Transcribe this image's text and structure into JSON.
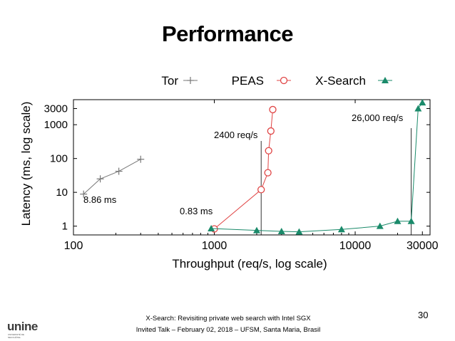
{
  "slide": {
    "title": "Performance",
    "page_number": "30",
    "footer_line1": "X-Search: Revisiting private web search with Intel SGX",
    "footer_line2": "Invited Talk – February 02, 2018 – UFSM, Santa Maria, Brasil",
    "logo_text": "unine",
    "logo_subtext": "UNIVERSITÉ DE NEUCHÂTEL"
  },
  "chart_data": {
    "type": "line",
    "title": "",
    "xlabel": "Throughput (req/s, log scale)",
    "ylabel": "Latency (ms, log scale)",
    "xscale": "log",
    "yscale": "log",
    "xlim": [
      100,
      34000
    ],
    "ylim": [
      0.55,
      5500
    ],
    "grid": false,
    "legend_position": "top",
    "x_ticks": [
      {
        "value": 100,
        "label": "100"
      },
      {
        "value": 1000,
        "label": "1000"
      },
      {
        "value": 10000,
        "label": "10000"
      },
      {
        "value": 30000,
        "label": "30000"
      }
    ],
    "y_ticks": [
      {
        "value": 1,
        "label": "1"
      },
      {
        "value": 10,
        "label": "10"
      },
      {
        "value": 100,
        "label": "100"
      },
      {
        "value": 1000,
        "label": "1000"
      },
      {
        "value": 3000,
        "label": "3000"
      }
    ],
    "series": [
      {
        "name": "Tor",
        "marker": "plus",
        "color": "#777777",
        "x": [
          118,
          155,
          210,
          300
        ],
        "y": [
          8.86,
          25,
          42,
          95
        ]
      },
      {
        "name": "PEAS",
        "marker": "circle",
        "color": "#e04545",
        "x": [
          1000,
          2150,
          2400,
          2430,
          2520,
          2600
        ],
        "y": [
          0.83,
          12,
          38,
          170,
          650,
          2800
        ]
      },
      {
        "name": "X-Search",
        "marker": "triangle",
        "color": "#1a8a6a",
        "x": [
          950,
          2000,
          3000,
          4000,
          8000,
          15000,
          20000,
          25000,
          28000,
          30000
        ],
        "y": [
          0.85,
          0.75,
          0.7,
          0.68,
          0.8,
          1.0,
          1.4,
          1.4,
          3000,
          4500
        ]
      }
    ],
    "annotations": [
      {
        "text": "8.86 ms"
      },
      {
        "text": "0.83 ms"
      },
      {
        "text": "2400 req/s"
      },
      {
        "text": "26,000 req/s"
      }
    ]
  }
}
